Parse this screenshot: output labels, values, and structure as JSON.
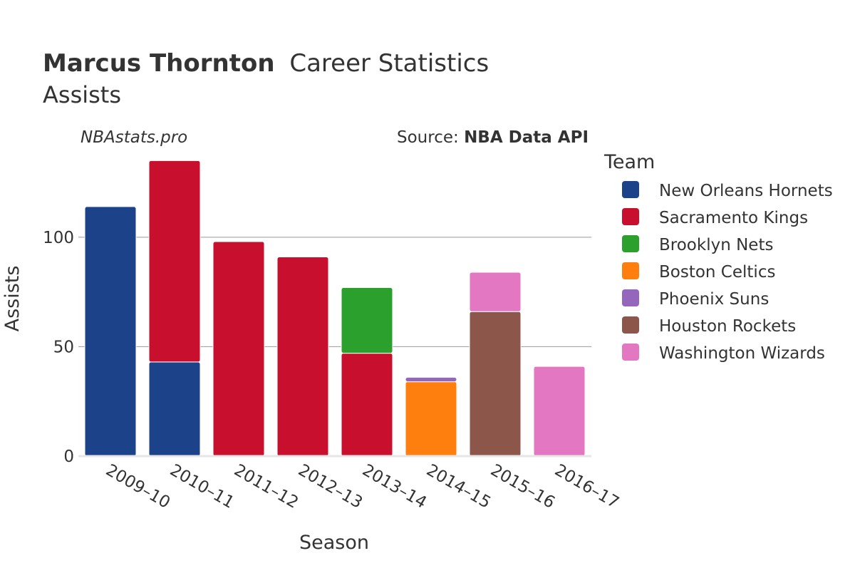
{
  "chart_data": {
    "type": "bar",
    "stacked": true,
    "title_bold": "Marcus Thornton",
    "title_rest": "Career Statistics",
    "subtitle": "Assists",
    "watermark": "NBAstats.pro",
    "source_prefix": "Source: ",
    "source_name": "NBA Data API",
    "xlabel": "Season",
    "ylabel": "Assists",
    "ylim": [
      0,
      140
    ],
    "yticks": [
      0,
      50,
      100
    ],
    "grid": true,
    "legend_title": "Team",
    "legend_position": "right",
    "categories": [
      "2009–10",
      "2010–11",
      "2011–12",
      "2012–13",
      "2013–14",
      "2014–15",
      "2015–16",
      "2016–17"
    ],
    "series": [
      {
        "name": "New Orleans Hornets",
        "color": "#1c428a",
        "values": [
          114,
          43,
          0,
          0,
          0,
          0,
          0,
          0
        ]
      },
      {
        "name": "Sacramento Kings",
        "color": "#c8102e",
        "values": [
          0,
          92,
          98,
          91,
          47,
          0,
          0,
          0
        ]
      },
      {
        "name": "Brooklyn Nets",
        "color": "#2ca02c",
        "values": [
          0,
          0,
          0,
          0,
          30,
          0,
          0,
          0
        ]
      },
      {
        "name": "Boston Celtics",
        "color": "#ff7f0e",
        "values": [
          0,
          0,
          0,
          0,
          0,
          34,
          0,
          0
        ]
      },
      {
        "name": "Phoenix Suns",
        "color": "#9467bd",
        "values": [
          0,
          0,
          0,
          0,
          0,
          2,
          0,
          0
        ]
      },
      {
        "name": "Houston Rockets",
        "color": "#8c564b",
        "values": [
          0,
          0,
          0,
          0,
          0,
          0,
          66,
          0
        ]
      },
      {
        "name": "Washington Wizards",
        "color": "#e377c2",
        "values": [
          0,
          0,
          0,
          0,
          0,
          0,
          18,
          41
        ]
      }
    ]
  }
}
